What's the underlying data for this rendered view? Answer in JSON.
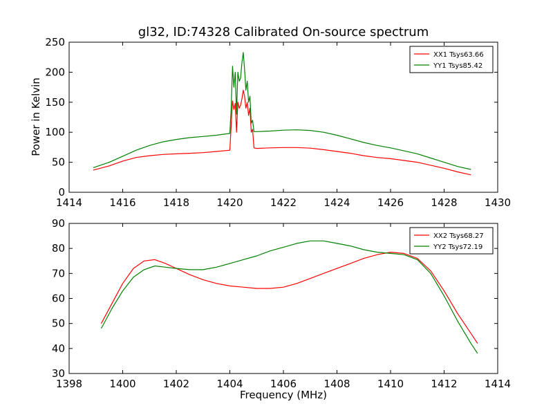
{
  "figure": {
    "title": "gl32, ID:74328 Calibrated On-source spectrum",
    "xlabel": "Frequency (MHz)",
    "ylabel_top": "Power in Kelvin"
  },
  "chart_data": [
    {
      "type": "line",
      "title": "gl32, ID:74328 Calibrated On-source spectrum",
      "xlabel": "",
      "ylabel": "Power in Kelvin",
      "xlim": [
        1414,
        1430
      ],
      "ylim": [
        0,
        250
      ],
      "xticks": [
        "1414",
        "1416",
        "1418",
        "1420",
        "1422",
        "1424",
        "1426",
        "1428",
        "1430"
      ],
      "yticks": [
        "0",
        "50",
        "100",
        "150",
        "200",
        "250"
      ],
      "grid": false,
      "legend_position": "top-right",
      "series": [
        {
          "name": "XX1 Tsys63.66",
          "color": "#ff0000",
          "x": [
            1414.9,
            1415.5,
            1416,
            1416.5,
            1417,
            1417.5,
            1418,
            1418.5,
            1419,
            1419.5,
            1420,
            1420.05,
            1420.1,
            1420.15,
            1420.2,
            1420.25,
            1420.3,
            1420.35,
            1420.4,
            1420.45,
            1420.5,
            1420.55,
            1420.6,
            1420.65,
            1420.7,
            1420.75,
            1420.8,
            1420.85,
            1420.9,
            1421,
            1421.5,
            1422,
            1422.5,
            1423,
            1423.5,
            1424,
            1424.5,
            1425,
            1425.5,
            1426,
            1426.5,
            1427,
            1427.5,
            1428,
            1428.5,
            1429
          ],
          "y": [
            37,
            44,
            52,
            58,
            61,
            63,
            64,
            65,
            66,
            68,
            70,
            110,
            152,
            138,
            148,
            100,
            150,
            140,
            145,
            155,
            170,
            160,
            140,
            150,
            128,
            140,
            100,
            105,
            74,
            73,
            74,
            74.5,
            74.5,
            73.5,
            71,
            68,
            65,
            61,
            58,
            56,
            53,
            50,
            45,
            40,
            34,
            29
          ]
        },
        {
          "name": "YY1 Tsys85.42",
          "color": "#008000",
          "x": [
            1414.9,
            1415.5,
            1416,
            1416.5,
            1417,
            1417.5,
            1418,
            1418.5,
            1419,
            1419.5,
            1420,
            1420.05,
            1420.1,
            1420.15,
            1420.2,
            1420.25,
            1420.3,
            1420.35,
            1420.4,
            1420.45,
            1420.5,
            1420.55,
            1420.6,
            1420.65,
            1420.7,
            1420.75,
            1420.8,
            1420.85,
            1420.9,
            1421,
            1421.5,
            1422,
            1422.5,
            1423,
            1423.5,
            1424,
            1424.5,
            1425,
            1425.5,
            1426,
            1426.5,
            1427,
            1427.5,
            1428,
            1428.5,
            1429
          ],
          "y": [
            41,
            50,
            60,
            70,
            78,
            84,
            88,
            91,
            93,
            95,
            98,
            140,
            210,
            175,
            200,
            130,
            200,
            185,
            190,
            215,
            233,
            205,
            170,
            185,
            150,
            160,
            115,
            120,
            101,
            101,
            102,
            103.5,
            104,
            103,
            100,
            95,
            89,
            83,
            78,
            74,
            69,
            64,
            57,
            50,
            43,
            38
          ]
        }
      ]
    },
    {
      "type": "line",
      "title": "",
      "xlabel": "Frequency (MHz)",
      "ylabel": "",
      "xlim": [
        1398,
        1414
      ],
      "ylim": [
        30,
        90
      ],
      "xticks": [
        "1398",
        "1400",
        "1402",
        "1404",
        "1406",
        "1408",
        "1410",
        "1412",
        "1414"
      ],
      "yticks": [
        "30",
        "40",
        "50",
        "60",
        "70",
        "80",
        "90"
      ],
      "grid": false,
      "legend_position": "top-right",
      "series": [
        {
          "name": "XX2 Tsys68.27",
          "color": "#ff0000",
          "x": [
            1399.2,
            1399.6,
            1400,
            1400.4,
            1400.8,
            1401.2,
            1401.6,
            1402,
            1402.5,
            1403,
            1403.5,
            1404,
            1404.5,
            1405,
            1405.5,
            1406,
            1406.5,
            1407,
            1407.5,
            1408,
            1408.5,
            1409,
            1409.5,
            1410,
            1410.5,
            1411,
            1411.5,
            1412,
            1412.5,
            1413,
            1413.25
          ],
          "y": [
            50,
            58,
            66,
            72,
            75,
            75.5,
            74,
            72,
            69.5,
            67.5,
            66,
            65,
            64.5,
            64,
            64,
            64.5,
            66,
            68,
            70,
            72,
            74,
            76,
            77.5,
            78.5,
            78,
            76,
            71,
            63,
            54,
            46,
            42
          ]
        },
        {
          "name": "YY2 Tsys72.19",
          "color": "#008000",
          "x": [
            1399.2,
            1399.6,
            1400,
            1400.4,
            1400.8,
            1401.2,
            1401.6,
            1402,
            1402.5,
            1403,
            1403.5,
            1404,
            1404.5,
            1405,
            1405.5,
            1406,
            1406.5,
            1407,
            1407.5,
            1408,
            1408.5,
            1409,
            1409.5,
            1410,
            1410.5,
            1411,
            1411.5,
            1412,
            1412.5,
            1413,
            1413.25
          ],
          "y": [
            48,
            56,
            63,
            68.5,
            71.5,
            73,
            72.5,
            72,
            71.5,
            71.5,
            72.5,
            74,
            75.5,
            77,
            79,
            80.5,
            82,
            83,
            83,
            82,
            81,
            79.5,
            78.5,
            78,
            77.5,
            75.5,
            70,
            61,
            51,
            42,
            38
          ]
        }
      ]
    }
  ]
}
